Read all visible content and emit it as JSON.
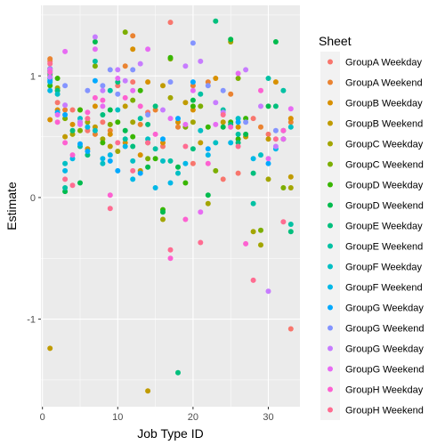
{
  "chart_data": {
    "type": "scatter",
    "title": "",
    "xlabel": "Job Type ID",
    "ylabel": "Estimate",
    "xlim": [
      -0.2,
      34.2
    ],
    "ylim": [
      -1.72,
      1.58
    ],
    "x_ticks": [
      0,
      10,
      20,
      30
    ],
    "y_ticks": [
      -1,
      0,
      1
    ],
    "grid": true,
    "legend_title": "Sheet",
    "legend_position": "right",
    "series": [
      {
        "name": "GroupA Weekday",
        "color": "#F8766D",
        "points": [
          [
            1,
            1.12
          ],
          [
            2,
            0.78
          ],
          [
            4,
            0.72
          ],
          [
            6,
            0.55
          ],
          [
            8,
            0.62
          ],
          [
            10,
            0.92
          ],
          [
            12,
            0.95
          ],
          [
            14,
            0.7
          ],
          [
            16,
            0.42
          ],
          [
            17,
            1.44
          ],
          [
            20,
            0.28
          ],
          [
            24,
            0.15
          ],
          [
            26,
            0.2
          ],
          [
            28,
            0.65
          ],
          [
            30,
            0.52
          ],
          [
            33,
            -1.08
          ]
        ]
      },
      {
        "name": "GroupA Weekend",
        "color": "#EA8331",
        "points": [
          [
            1,
            1.14
          ],
          [
            2,
            0.88
          ],
          [
            3,
            0.72
          ],
          [
            5,
            0.62
          ],
          [
            7,
            0.52
          ],
          [
            9,
            0.55
          ],
          [
            11,
            1.08
          ],
          [
            12,
            1.33
          ],
          [
            13,
            0.6
          ],
          [
            15,
            0.72
          ],
          [
            18,
            0.58
          ],
          [
            20,
            0.92
          ],
          [
            22,
            0.95
          ],
          [
            25,
            0.85
          ],
          [
            29,
            0.58
          ],
          [
            33,
            0.62
          ]
        ]
      },
      {
        "name": "GroupB Weekday",
        "color": "#D89000",
        "points": [
          [
            1,
            0.64
          ],
          [
            2,
            0.72
          ],
          [
            4,
            0.6
          ],
          [
            6,
            0.4
          ],
          [
            7,
            0.75
          ],
          [
            9,
            0.52
          ],
          [
            11,
            0.45
          ],
          [
            12,
            1.22
          ],
          [
            13,
            0.35
          ],
          [
            14,
            0.95
          ],
          [
            16,
            0.45
          ],
          [
            18,
            0.62
          ],
          [
            20,
            0.72
          ],
          [
            23,
            0.98
          ],
          [
            26,
            0.58
          ],
          [
            31,
            0.95
          ],
          [
            33,
            0.65
          ]
        ]
      },
      {
        "name": "GroupB Weekend",
        "color": "#C09B00",
        "points": [
          [
            1,
            -1.24
          ],
          [
            3,
            0.5
          ],
          [
            5,
            0.72
          ],
          [
            7,
            0.58
          ],
          [
            9,
            0.42
          ],
          [
            11,
            0.75
          ],
          [
            13,
            0.22
          ],
          [
            14,
            -1.59
          ],
          [
            16,
            0.92
          ],
          [
            19,
            0.78
          ],
          [
            21,
            0.45
          ],
          [
            24,
            0.62
          ],
          [
            27,
            0.5
          ],
          [
            30,
            0.48
          ],
          [
            33,
            0.17
          ]
        ]
      },
      {
        "name": "GroupC Weekday",
        "color": "#A3A500",
        "points": [
          [
            1,
            1.0
          ],
          [
            2,
            0.9
          ],
          [
            4,
            0.52
          ],
          [
            6,
            0.62
          ],
          [
            8,
            0.48
          ],
          [
            10,
            0.38
          ],
          [
            12,
            0.62
          ],
          [
            14,
            0.45
          ],
          [
            16,
            -0.18
          ],
          [
            17,
            0.82
          ],
          [
            20,
            0.62
          ],
          [
            22,
            -0.05
          ],
          [
            25,
            1.28
          ],
          [
            28,
            -0.28
          ],
          [
            29,
            -0.39
          ],
          [
            30,
            0.15
          ],
          [
            33,
            0.08
          ]
        ]
      },
      {
        "name": "GroupC Weekend",
        "color": "#7CAE00",
        "points": [
          [
            1,
            1.06
          ],
          [
            3,
            0.65
          ],
          [
            5,
            0.55
          ],
          [
            7,
            1.08
          ],
          [
            9,
            0.6
          ],
          [
            11,
            1.36
          ],
          [
            12,
            0.8
          ],
          [
            14,
            0.32
          ],
          [
            17,
            1.14
          ],
          [
            19,
            0.58
          ],
          [
            21,
            0.75
          ],
          [
            23,
            0.22
          ],
          [
            26,
            0.98
          ],
          [
            29,
            -0.27
          ],
          [
            32,
            0.08
          ]
        ]
      },
      {
        "name": "GroupD Weekday",
        "color": "#39B600",
        "points": [
          [
            1,
            0.92
          ],
          [
            2,
            0.98
          ],
          [
            5,
            0.72
          ],
          [
            8,
            0.45
          ],
          [
            10,
            0.62
          ],
          [
            12,
            0.5
          ],
          [
            13,
            0.88
          ],
          [
            15,
            0.32
          ],
          [
            16,
            -0.1
          ],
          [
            17,
            1.15
          ],
          [
            19,
            0.12
          ],
          [
            20,
            0.75
          ],
          [
            22,
            0.58
          ],
          [
            25,
            0.62
          ],
          [
            26,
            0.48
          ],
          [
            27,
            0.65
          ],
          [
            32,
            0.48
          ]
        ]
      },
      {
        "name": "GroupD Weekend",
        "color": "#00BB4E",
        "points": [
          [
            1,
            1.04
          ],
          [
            3,
            0.05
          ],
          [
            5,
            0.12
          ],
          [
            7,
            1.28
          ],
          [
            9,
            0.72
          ],
          [
            11,
            0.55
          ],
          [
            14,
            0.25
          ],
          [
            16,
            -0.12
          ],
          [
            18,
            0.25
          ],
          [
            20,
            0.8
          ],
          [
            22,
            0.02
          ],
          [
            24,
            0.58
          ],
          [
            25,
            1.3
          ],
          [
            27,
            0.52
          ],
          [
            30,
            0.75
          ],
          [
            31,
            1.28
          ]
        ]
      },
      {
        "name": "GroupE Weekday",
        "color": "#00BF7D",
        "points": [
          [
            1,
            1.02
          ],
          [
            2,
            0.88
          ],
          [
            4,
            0.55
          ],
          [
            6,
            0.35
          ],
          [
            8,
            0.68
          ],
          [
            10,
            0.95
          ],
          [
            12,
            0.42
          ],
          [
            14,
            0.6
          ],
          [
            15,
            0.75
          ],
          [
            18,
            -1.44
          ],
          [
            20,
            0.4
          ],
          [
            23,
            1.45
          ],
          [
            25,
            0.6
          ],
          [
            26,
            0.45
          ],
          [
            28,
            0.2
          ],
          [
            31,
            0.75
          ],
          [
            33,
            -0.28
          ]
        ]
      },
      {
        "name": "GroupE Weekend",
        "color": "#00C1A3",
        "points": [
          [
            1,
            0.98
          ],
          [
            3,
            0.08
          ],
          [
            5,
            0.42
          ],
          [
            7,
            1.12
          ],
          [
            9,
            0.88
          ],
          [
            11,
            0.48
          ],
          [
            13,
            0.65
          ],
          [
            15,
            0.4
          ],
          [
            17,
            0.3
          ],
          [
            21,
            0.85
          ],
          [
            24,
            0.72
          ],
          [
            26,
            0.52
          ],
          [
            28,
            -0.05
          ],
          [
            30,
            0.98
          ],
          [
            32,
            0.88
          ],
          [
            33,
            -0.22
          ]
        ]
      },
      {
        "name": "GroupF Weekday",
        "color": "#00BFC4",
        "points": [
          [
            1,
            0.95
          ],
          [
            2,
            0.85
          ],
          [
            3,
            0.28
          ],
          [
            5,
            0.65
          ],
          [
            7,
            0.55
          ],
          [
            8,
            0.28
          ],
          [
            10,
            0.72
          ],
          [
            12,
            0.3
          ],
          [
            14,
            0.48
          ],
          [
            16,
            0.3
          ],
          [
            18,
            0.2
          ],
          [
            21,
            0.55
          ],
          [
            23,
            0.45
          ],
          [
            26,
            0.65
          ],
          [
            29,
            0.35
          ],
          [
            32,
            0.55
          ],
          [
            33,
            0.58
          ]
        ]
      },
      {
        "name": "GroupF Weekend",
        "color": "#00B8E7",
        "points": [
          [
            1,
            0.88
          ],
          [
            3,
            0.22
          ],
          [
            4,
            0.32
          ],
          [
            6,
            0.58
          ],
          [
            8,
            0.32
          ],
          [
            9,
            0.35
          ],
          [
            11,
            0.42
          ],
          [
            12,
            0.15
          ],
          [
            15,
            0.08
          ],
          [
            17,
            0.12
          ],
          [
            19,
            0.28
          ],
          [
            22,
            0.35
          ],
          [
            25,
            0.45
          ],
          [
            28,
            0.32
          ],
          [
            31,
            0.4
          ]
        ]
      },
      {
        "name": "GroupG Weekday",
        "color": "#00A9FF",
        "points": [
          [
            1,
            0.96
          ],
          [
            2,
            0.7
          ],
          [
            3,
            0.68
          ],
          [
            5,
            0.44
          ],
          [
            6,
            0.38
          ],
          [
            7,
            0.96
          ],
          [
            9,
            0.3
          ],
          [
            10,
            0.22
          ],
          [
            13,
            0.2
          ],
          [
            16,
            0.48
          ],
          [
            18,
            0.65
          ],
          [
            20,
            0.95
          ],
          [
            22,
            0.4
          ],
          [
            26,
            0.62
          ],
          [
            30,
            0.28
          ]
        ]
      },
      {
        "name": "GroupG Weekend",
        "color": "#8494FF",
        "points": [
          [
            1,
            1.06
          ],
          [
            3,
            0.92
          ],
          [
            6,
            0.88
          ],
          [
            8,
            0.92
          ],
          [
            9,
            1.05
          ],
          [
            10,
            0.85
          ],
          [
            12,
            1.05
          ],
          [
            14,
            0.68
          ],
          [
            17,
            0.95
          ],
          [
            20,
            1.27
          ],
          [
            22,
            0.92
          ],
          [
            24,
            0.88
          ],
          [
            27,
            0.62
          ],
          [
            31,
            0.55
          ]
        ]
      },
      {
        "name": "GroupG Weekday",
        "color": "#C77CFF",
        "points": [
          [
            1,
            0.99
          ],
          [
            3,
            0.76
          ],
          [
            5,
            0.62
          ],
          [
            7,
            1.32
          ],
          [
            8,
            0.88
          ],
          [
            10,
            1.05
          ],
          [
            11,
            0.96
          ],
          [
            13,
            1.1
          ],
          [
            16,
            0.72
          ],
          [
            19,
            1.08
          ],
          [
            21,
            1.12
          ],
          [
            23,
            0.78
          ],
          [
            24,
            0.7
          ],
          [
            27,
            1.05
          ],
          [
            29,
            0.75
          ],
          [
            30,
            -0.77
          ],
          [
            31,
            0.42
          ]
        ]
      },
      {
        "name": "GroupG Weekend",
        "color": "#E76BF3",
        "points": [
          [
            1,
            1.05
          ],
          [
            2,
            0.68
          ],
          [
            3,
            1.2
          ],
          [
            5,
            0.6
          ],
          [
            7,
            1.22
          ],
          [
            8,
            0.75
          ],
          [
            10,
            0.98
          ],
          [
            12,
            0.88
          ],
          [
            14,
            1.22
          ],
          [
            17,
            0.65
          ],
          [
            19,
            0.6
          ],
          [
            20,
            0.88
          ],
          [
            21,
            -0.12
          ],
          [
            23,
            0.6
          ],
          [
            26,
            1.02
          ],
          [
            30,
            0.32
          ],
          [
            32,
            0.48
          ],
          [
            33,
            0.73
          ]
        ]
      },
      {
        "name": "GroupH Weekday",
        "color": "#FD61D1",
        "points": [
          [
            1,
            1.03
          ],
          [
            2,
            0.62
          ],
          [
            3,
            0.45
          ],
          [
            4,
            0.35
          ],
          [
            6,
            0.7
          ],
          [
            7,
            0.82
          ],
          [
            8,
            0.8
          ],
          [
            9,
            0.02
          ],
          [
            11,
            0.82
          ],
          [
            13,
            0.75
          ],
          [
            15,
            0.52
          ],
          [
            17,
            -0.5
          ],
          [
            19,
            -0.18
          ],
          [
            22,
            0.28
          ],
          [
            25,
            0.58
          ],
          [
            27,
            -0.38
          ],
          [
            29,
            0.88
          ],
          [
            32,
            0.55
          ]
        ]
      },
      {
        "name": "GroupH Weekend",
        "color": "#FF6C91",
        "points": [
          [
            1,
            1.1
          ],
          [
            3,
            0.15
          ],
          [
            4,
            0.1
          ],
          [
            6,
            0.65
          ],
          [
            9,
            -0.09
          ],
          [
            10,
            0.45
          ],
          [
            12,
            0.22
          ],
          [
            14,
            0.45
          ],
          [
            17,
            -0.43
          ],
          [
            19,
            0.42
          ],
          [
            21,
            -0.37
          ],
          [
            24,
            0.68
          ],
          [
            26,
            0.42
          ],
          [
            28,
            -0.68
          ],
          [
            31,
            0.48
          ],
          [
            32,
            -0.2
          ]
        ]
      }
    ]
  }
}
